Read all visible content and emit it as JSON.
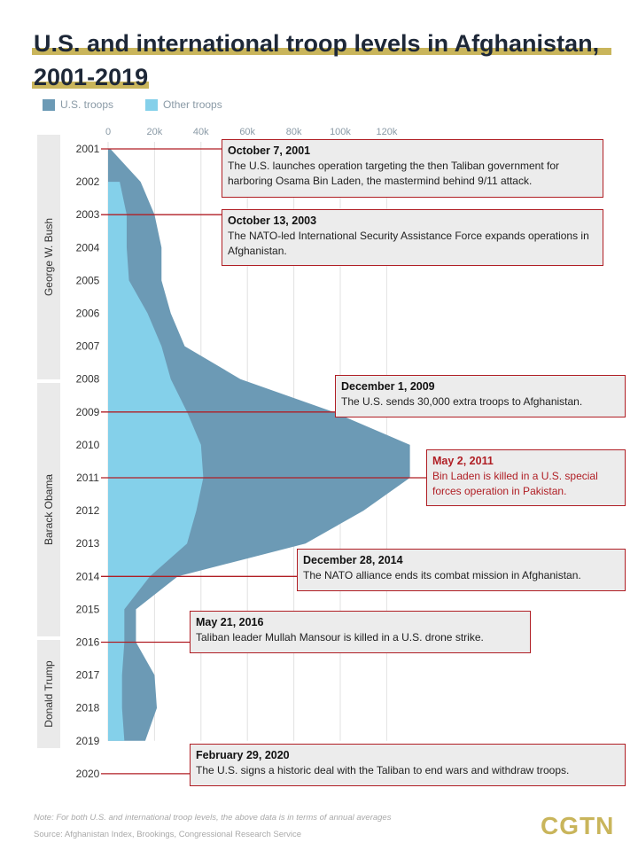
{
  "title_lines": [
    "U.S. and international troop levels in Afghanistan,",
    "2001-2019"
  ],
  "colors": {
    "us_troops": "#6c9ab5",
    "other_troops": "#84d0ea",
    "accent": "#c9b55b",
    "annotation_border": "#b01e24",
    "text_dark": "#1e2838"
  },
  "legend": [
    {
      "label": "U.S. troops",
      "color": "#6c9ab5"
    },
    {
      "label": "Other troops",
      "color": "#84d0ea"
    }
  ],
  "presidents": [
    "George W. Bush",
    "Barack Obama",
    "Donald Trump"
  ],
  "chart_data": {
    "type": "area",
    "orientation": "horizontal",
    "x_tick_labels": [
      "0",
      "20k",
      "40k",
      "60k",
      "80k",
      "100k",
      "120k"
    ],
    "xlim": [
      0,
      130000
    ],
    "y_labels": [
      "2001",
      "2002",
      "2003",
      "2004",
      "2005",
      "2006",
      "2007",
      "2008",
      "2009",
      "2010",
      "2011",
      "2012",
      "2013",
      "2014",
      "2015",
      "2016",
      "2017",
      "2018",
      "2019",
      "2020"
    ],
    "years": [
      2001,
      2002,
      2003,
      2004,
      2005,
      2006,
      2007,
      2008,
      2009,
      2010,
      2011,
      2012,
      2013,
      2014,
      2015,
      2016,
      2017,
      2018,
      2019
    ],
    "series": [
      {
        "name": "U.S. troops",
        "stacked_total": [
          1000,
          14000,
          20000,
          23000,
          23000,
          27000,
          33000,
          57000,
          97000,
          130000,
          130000,
          110000,
          85000,
          30000,
          12000,
          12000,
          20000,
          21000,
          16000
        ]
      },
      {
        "name": "Other troops",
        "values": [
          0,
          5000,
          8000,
          8000,
          9000,
          17000,
          23000,
          27000,
          34000,
          40000,
          41000,
          38000,
          34000,
          18000,
          7000,
          7000,
          6000,
          6000,
          7000
        ]
      }
    ],
    "grid": true
  },
  "annotations": [
    {
      "date": "October 7, 2001",
      "text": "The U.S. launches operation targeting the then Taliban government for harboring Osama Bin Laden, the mastermind behind 9/11 attack.",
      "red": false
    },
    {
      "date": "October 13, 2003",
      "text": "The NATO-led International Security Assistance Force expands operations in Afghanistan.",
      "red": false
    },
    {
      "date": "December 1, 2009",
      "text": "The U.S. sends 30,000 extra troops to Afghanistan.",
      "red": false
    },
    {
      "date": "May 2, 2011",
      "text": "Bin Laden is killed in a U.S. special forces operation in Pakistan.",
      "red": true
    },
    {
      "date": "December 28, 2014",
      "text": "The NATO alliance ends its combat mission in Afghanistan.",
      "red": false
    },
    {
      "date": "May 21, 2016",
      "text": "Taliban leader Mullah Mansour is killed in a U.S. drone strike.",
      "red": false
    },
    {
      "date": "February 29, 2020",
      "text": "The U.S. signs a historic deal with the Taliban to end wars and withdraw troops.",
      "red": false
    }
  ],
  "note": "Note: For both U.S. and international troop levels, the above data is in terms of annual averages",
  "source": "Source: Afghanistan Index, Brookings, Congressional Research Service",
  "logo": "CGTN"
}
